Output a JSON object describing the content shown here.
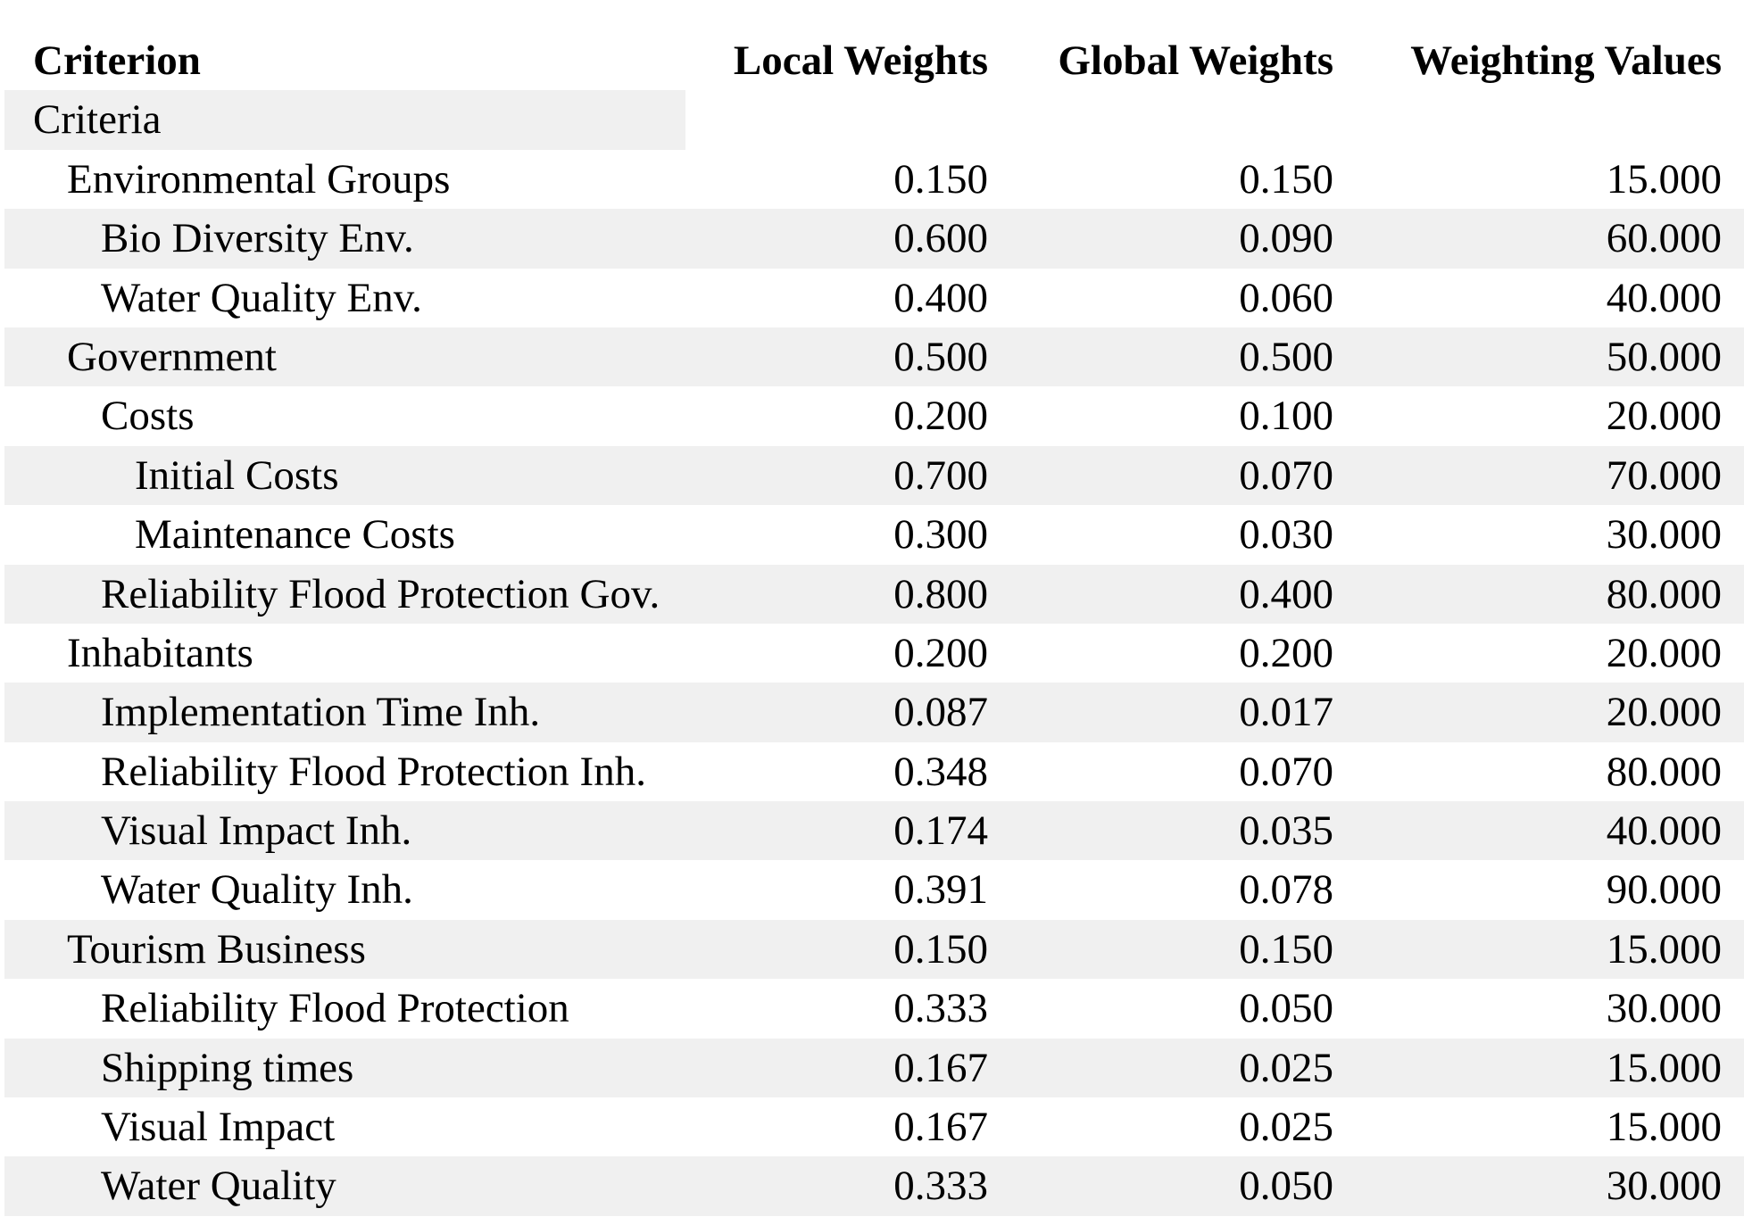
{
  "table": {
    "headers": {
      "criterion": "Criterion",
      "local": "Local Weights",
      "global": "Global Weights",
      "value": "Weighting Values"
    },
    "root_label": "Criteria",
    "rows": [
      {
        "name": "Environmental Groups",
        "level": 1,
        "local": "0.150",
        "global": "0.150",
        "value": "15.000"
      },
      {
        "name": "Bio Diversity Env.",
        "level": 2,
        "local": "0.600",
        "global": "0.090",
        "value": "60.000"
      },
      {
        "name": "Water Quality Env.",
        "level": 2,
        "local": "0.400",
        "global": "0.060",
        "value": "40.000"
      },
      {
        "name": "Government",
        "level": 1,
        "local": "0.500",
        "global": "0.500",
        "value": "50.000"
      },
      {
        "name": "Costs",
        "level": 2,
        "local": "0.200",
        "global": "0.100",
        "value": "20.000"
      },
      {
        "name": "Initial Costs",
        "level": 3,
        "local": "0.700",
        "global": "0.070",
        "value": "70.000"
      },
      {
        "name": "Maintenance Costs",
        "level": 3,
        "local": "0.300",
        "global": "0.030",
        "value": "30.000"
      },
      {
        "name": "Reliability Flood Protection Gov.",
        "level": 2,
        "local": "0.800",
        "global": "0.400",
        "value": "80.000"
      },
      {
        "name": "Inhabitants",
        "level": 1,
        "local": "0.200",
        "global": "0.200",
        "value": "20.000"
      },
      {
        "name": "Implementation Time Inh.",
        "level": 2,
        "local": "0.087",
        "global": "0.017",
        "value": "20.000"
      },
      {
        "name": "Reliability Flood Protection Inh.",
        "level": 2,
        "local": "0.348",
        "global": "0.070",
        "value": "80.000"
      },
      {
        "name": "Visual Impact Inh.",
        "level": 2,
        "local": "0.174",
        "global": "0.035",
        "value": "40.000"
      },
      {
        "name": "Water Quality Inh.",
        "level": 2,
        "local": "0.391",
        "global": "0.078",
        "value": "90.000"
      },
      {
        "name": "Tourism Business",
        "level": 1,
        "local": "0.150",
        "global": "0.150",
        "value": "15.000"
      },
      {
        "name": "Reliability Flood Protection",
        "level": 2,
        "local": "0.333",
        "global": "0.050",
        "value": "30.000"
      },
      {
        "name": "Shipping times",
        "level": 2,
        "local": "0.167",
        "global": "0.025",
        "value": "15.000"
      },
      {
        "name": "Visual Impact",
        "level": 2,
        "local": "0.167",
        "global": "0.025",
        "value": "15.000"
      },
      {
        "name": "Water Quality",
        "level": 2,
        "local": "0.333",
        "global": "0.050",
        "value": "30.000"
      }
    ]
  }
}
